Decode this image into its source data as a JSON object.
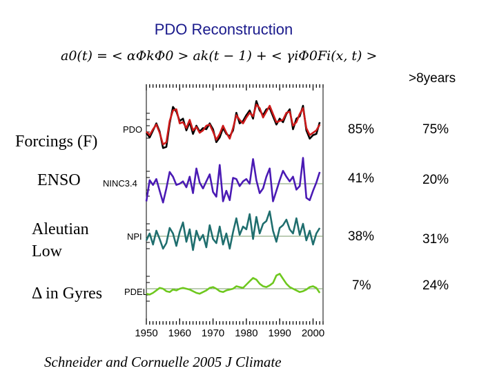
{
  "title": "PDO Reconstruction",
  "formula": {
    "a0_t": "a0(t)",
    "eq": "= <",
    "alpha_phi": "αΦkΦ0",
    "gt": ">",
    "ak": "ak(t − 1)",
    "plus": "+ <",
    "gamma": "γiΦ0Fi(x, t)",
    "end": ">"
  },
  "column_header": ">8years",
  "forcings_header": "Forcings (F)",
  "rows": [
    {
      "label": "",
      "series_label": "PDO",
      "pct_total": "85%",
      "pct_8yr": "75%"
    },
    {
      "label": "ENSO",
      "series_label": "NINC3.4",
      "pct_total": "41%",
      "pct_8yr": "20%"
    },
    {
      "label": "Aleutian Low",
      "series_label": "NPI",
      "pct_total": "38%",
      "pct_8yr": "31%"
    },
    {
      "label": "Δ in Gyres",
      "series_label": "PDEL",
      "pct_total": "7%",
      "pct_8yr": "24%"
    }
  ],
  "citation": "Schneider and Cornuelle 2005 J Climate",
  "colors": {
    "title": "#1a1a8c",
    "pdo_observed": "#000000",
    "pdo_reconstructed": "#cc1a1a",
    "ninc34": "#4a1ab4",
    "npi": "#1f6e6e",
    "pdel": "#6ec81e",
    "baseline": "#7a9a6a"
  },
  "chart_data": {
    "type": "line",
    "x_tick_labels": [
      "1950",
      "1960",
      "1970",
      "1980",
      "1990",
      "2000"
    ],
    "xlim": [
      1950,
      2003
    ],
    "grid": false,
    "panels": [
      {
        "name": "PDO",
        "series": [
          {
            "name": "",
            "color": "#000000",
            "x": [
              1950,
              1951,
              1952,
              1953,
              1954,
              1955,
              1956,
              1957,
              1958,
              1959,
              1960,
              1961,
              1962,
              1963,
              1964,
              1965,
              1966,
              1967,
              1968,
              1969,
              1970,
              1971,
              1972,
              1973,
              1974,
              1975,
              1976,
              1977,
              1978,
              1979,
              1980,
              1981,
              1982,
              1983,
              1984,
              1985,
              1986,
              1987,
              1988,
              1989,
              1990,
              1991,
              1992,
              1993,
              1994,
              1995,
              1996,
              1997,
              1998,
              1999,
              2000,
              2001,
              2002
            ],
            "values": [
              -0.6,
              -1.0,
              -0.4,
              0.2,
              -0.5,
              -1.9,
              -1.8,
              0.2,
              1.6,
              1.2,
              0.4,
              0.6,
              -0.4,
              0.3,
              -0.7,
              0.0,
              -0.5,
              -0.2,
              -0.3,
              0.2,
              -0.3,
              -1.4,
              -1.0,
              -0.2,
              -0.7,
              -0.9,
              -0.4,
              1.1,
              0.2,
              0.4,
              0.9,
              1.3,
              0.6,
              2.1,
              1.3,
              0.9,
              1.4,
              1.5,
              0.8,
              0.1,
              0.6,
              0.3,
              1.0,
              1.4,
              -0.3,
              0.6,
              0.8,
              1.7,
              -0.4,
              -1.1,
              -0.8,
              -0.7,
              0.3
            ]
          },
          {
            "name": "",
            "color": "#cc1a1a",
            "x": [
              1950,
              1951,
              1952,
              1953,
              1954,
              1955,
              1956,
              1957,
              1958,
              1959,
              1960,
              1961,
              1962,
              1963,
              1964,
              1965,
              1966,
              1967,
              1968,
              1969,
              1970,
              1971,
              1972,
              1973,
              1974,
              1975,
              1976,
              1977,
              1978,
              1979,
              1980,
              1981,
              1982,
              1983,
              1984,
              1985,
              1986,
              1987,
              1988,
              1989,
              1990,
              1991,
              1992,
              1993,
              1994,
              1995,
              1996,
              1997,
              1998,
              1999,
              2000,
              2001,
              2002
            ],
            "values": [
              -0.5,
              -0.8,
              -0.3,
              0.1,
              -0.6,
              -1.6,
              -1.4,
              0.4,
              1.3,
              1.4,
              0.2,
              0.3,
              -0.2,
              0.5,
              -0.4,
              -0.1,
              -0.6,
              -0.4,
              0.0,
              0.1,
              -0.5,
              -1.2,
              -0.7,
              0.0,
              -0.6,
              -1.1,
              -0.2,
              0.9,
              0.5,
              0.2,
              0.7,
              1.1,
              0.8,
              1.8,
              1.5,
              0.7,
              1.2,
              1.7,
              1.0,
              0.3,
              0.4,
              0.5,
              1.1,
              1.2,
              0.0,
              0.3,
              1.0,
              1.5,
              -0.2,
              -0.8,
              -0.6,
              -0.4,
              0.1
            ]
          }
        ]
      },
      {
        "name": "NINC3.4",
        "series": [
          {
            "name": "",
            "color": "#4a1ab4",
            "x": [
              1950,
              1951,
              1952,
              1953,
              1954,
              1955,
              1956,
              1957,
              1958,
              1959,
              1960,
              1961,
              1962,
              1963,
              1964,
              1965,
              1966,
              1967,
              1968,
              1969,
              1970,
              1971,
              1972,
              1973,
              1974,
              1975,
              1976,
              1977,
              1978,
              1979,
              1980,
              1981,
              1982,
              1983,
              1984,
              1985,
              1986,
              1987,
              1988,
              1989,
              1990,
              1991,
              1992,
              1993,
              1994,
              1995,
              1996,
              1997,
              1998,
              1999,
              2000,
              2001,
              2002
            ],
            "values": [
              -1.5,
              0.3,
              -0.1,
              0.4,
              -0.6,
              -1.6,
              -0.4,
              1.0,
              0.6,
              -0.1,
              0.0,
              0.2,
              -0.3,
              0.6,
              -0.8,
              1.3,
              0.1,
              -0.4,
              0.2,
              0.8,
              -0.7,
              -1.1,
              1.6,
              -1.5,
              -0.6,
              -1.4,
              0.5,
              0.4,
              -0.2,
              0.2,
              0.4,
              0.0,
              2.1,
              0.3,
              -0.8,
              -0.4,
              0.6,
              1.3,
              -1.5,
              -0.6,
              0.3,
              1.1,
              0.6,
              0.2,
              0.6,
              -0.5,
              -0.2,
              2.2,
              -1.2,
              -1.4,
              -0.6,
              0.1,
              1.0
            ]
          }
        ]
      },
      {
        "name": "NPI",
        "series": [
          {
            "name": "",
            "color": "#1f6e6e",
            "x": [
              1950,
              1951,
              1952,
              1953,
              1954,
              1955,
              1956,
              1957,
              1958,
              1959,
              1960,
              1961,
              1962,
              1963,
              1964,
              1965,
              1966,
              1967,
              1968,
              1969,
              1970,
              1971,
              1972,
              1973,
              1974,
              1975,
              1976,
              1977,
              1978,
              1979,
              1980,
              1981,
              1982,
              1983,
              1984,
              1985,
              1986,
              1987,
              1988,
              1989,
              1990,
              1991,
              1992,
              1993,
              1994,
              1995,
              1996,
              1997,
              1998,
              1999,
              2000,
              2001,
              2002
            ],
            "values": [
              -0.3,
              0.2,
              -0.6,
              0.4,
              -0.2,
              -0.9,
              -0.5,
              0.6,
              0.2,
              -0.7,
              0.3,
              1.0,
              -0.4,
              0.5,
              -1.0,
              0.4,
              -0.3,
              0.1,
              -0.8,
              0.8,
              -0.2,
              -0.5,
              0.7,
              -0.6,
              0.2,
              -0.9,
              0.3,
              1.3,
              0.1,
              0.7,
              0.5,
              1.6,
              -0.2,
              1.4,
              0.2,
              0.9,
              1.1,
              1.8,
              0.4,
              -0.4,
              0.6,
              0.8,
              1.2,
              0.5,
              0.2,
              1.3,
              0.1,
              0.9,
              -0.3,
              0.4,
              -0.6,
              0.2,
              0.6
            ]
          }
        ]
      },
      {
        "name": "PDEL",
        "series": [
          {
            "name": "",
            "color": "#6ec81e",
            "x": [
              1950,
              1951,
              1952,
              1953,
              1954,
              1955,
              1956,
              1957,
              1958,
              1959,
              1960,
              1961,
              1962,
              1963,
              1964,
              1965,
              1966,
              1967,
              1968,
              1969,
              1970,
              1971,
              1972,
              1973,
              1974,
              1975,
              1976,
              1977,
              1978,
              1979,
              1980,
              1981,
              1982,
              1983,
              1984,
              1985,
              1986,
              1987,
              1988,
              1989,
              1990,
              1991,
              1992,
              1993,
              1994,
              1995,
              1996,
              1997,
              1998,
              1999,
              2000,
              2001,
              2002
            ],
            "values": [
              -0.6,
              -0.7,
              -0.5,
              -0.2,
              0.1,
              0.0,
              -0.3,
              -0.4,
              -0.1,
              -0.2,
              0.0,
              0.1,
              0.0,
              -0.1,
              -0.3,
              -0.5,
              -0.6,
              -0.4,
              -0.2,
              0.1,
              0.2,
              0.0,
              -0.3,
              -0.4,
              -0.2,
              -0.1,
              0.0,
              0.3,
              0.2,
              0.1,
              0.5,
              0.9,
              1.3,
              1.1,
              0.6,
              0.3,
              0.2,
              0.4,
              0.7,
              1.6,
              1.8,
              1.2,
              0.6,
              0.2,
              0.0,
              -0.2,
              -0.4,
              -0.3,
              -0.1,
              0.2,
              0.3,
              0.1,
              -0.5
            ]
          }
        ]
      }
    ]
  }
}
